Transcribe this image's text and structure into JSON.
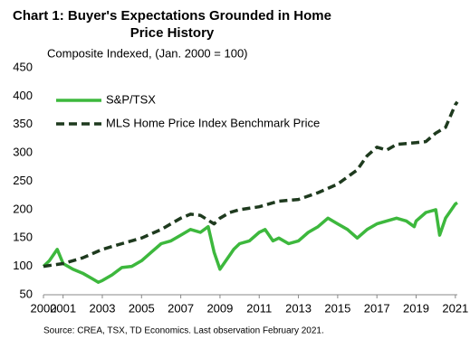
{
  "chart_data": {
    "type": "line",
    "title": [
      "Chart 1: Buyer's Expectations Grounded in Home",
      "Price History"
    ],
    "y_label": "Composite Indexed,  (Jan. 2000 = 100)",
    "source": "Source:  CREA,  TSX, TD Economics.  Last observation February 2021.",
    "xlim": [
      2000,
      2021.1
    ],
    "xticks": [
      2000,
      2001,
      2003,
      2005,
      2007,
      2009,
      2011,
      2013,
      2015,
      2017,
      2019,
      2021
    ],
    "ylim": [
      50,
      450
    ],
    "yticks": [
      50,
      100,
      150,
      200,
      250,
      300,
      350,
      400,
      450
    ],
    "grid": false,
    "legend": "top-left",
    "series": [
      {
        "name": "S&P/TSX",
        "color": "#3db83d",
        "dash": false,
        "x": [
          2000,
          2000.3,
          2000.7,
          2001,
          2001.5,
          2002,
          2002.5,
          2002.8,
          2003,
          2003.5,
          2004,
          2004.5,
          2005,
          2005.5,
          2006,
          2006.5,
          2007,
          2007.5,
          2008,
          2008.4,
          2008.7,
          2009,
          2009.3,
          2009.7,
          2010,
          2010.5,
          2011,
          2011.3,
          2011.7,
          2012,
          2012.5,
          2013,
          2013.5,
          2014,
          2014.5,
          2015,
          2015.5,
          2016,
          2016.5,
          2017,
          2017.5,
          2018,
          2018.5,
          2018.9,
          2019,
          2019.5,
          2020,
          2020.2,
          2020.5,
          2020.8,
          2021,
          2021.1
        ],
        "values": [
          100,
          110,
          130,
          105,
          95,
          88,
          78,
          72,
          75,
          85,
          98,
          100,
          110,
          125,
          140,
          145,
          155,
          165,
          160,
          170,
          125,
          95,
          110,
          130,
          140,
          145,
          160,
          165,
          145,
          150,
          140,
          145,
          160,
          170,
          185,
          175,
          165,
          150,
          165,
          175,
          180,
          185,
          180,
          170,
          180,
          195,
          200,
          155,
          185,
          200,
          210,
          212
        ]
      },
      {
        "name": "MLS Home Price Index Benchmark Price",
        "color": "#1e3a1e",
        "dash": true,
        "x": [
          2000,
          2001,
          2002,
          2003,
          2004,
          2005,
          2006,
          2007,
          2007.5,
          2008,
          2008.7,
          2009,
          2009.5,
          2010,
          2011,
          2012,
          2013,
          2014,
          2015,
          2016,
          2016.5,
          2017,
          2017.5,
          2018,
          2019,
          2019.5,
          2020,
          2020.5,
          2021,
          2021.1
        ],
        "values": [
          100,
          105,
          115,
          130,
          140,
          150,
          165,
          185,
          192,
          190,
          175,
          185,
          195,
          200,
          205,
          215,
          218,
          230,
          245,
          270,
          295,
          310,
          305,
          315,
          318,
          320,
          335,
          345,
          385,
          390
        ]
      }
    ]
  }
}
